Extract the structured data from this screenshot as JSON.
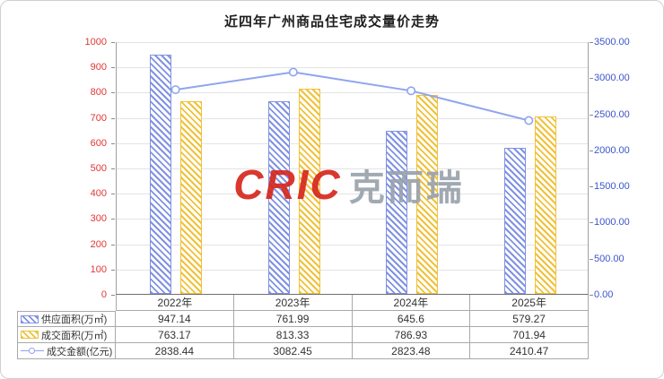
{
  "title": "近四年广州商品住宅成交量价走势",
  "watermark": {
    "brand": "CRIC",
    "brand_cn": "克而瑞",
    "brand_color": "#d6281e",
    "cn_color": "#9aa2ac"
  },
  "chart_data": {
    "type": "bar",
    "subtype": "grouped-bars-with-line",
    "title": "近四年广州商品住宅成交量价走势",
    "categories": [
      "2022年",
      "2023年",
      "2024年",
      "2025年"
    ],
    "series": [
      {
        "name": "供应面积(万㎡)",
        "kind": "bar",
        "axis": "left",
        "values": [
          947.14,
          761.99,
          645.6,
          579.27
        ],
        "display": [
          "947.14",
          "761.99",
          "645.6",
          "579.27"
        ],
        "color": "#8092e2",
        "fill_pattern": "diagonal-hatch"
      },
      {
        "name": "成交面积(万㎡)",
        "kind": "bar",
        "axis": "left",
        "values": [
          763.17,
          813.33,
          786.93,
          701.94
        ],
        "display": [
          "763.17",
          "813.33",
          "786.93",
          "701.94"
        ],
        "color": "#f0c138",
        "fill_pattern": "diagonal-hatch"
      },
      {
        "name": "成交金额(亿元)",
        "kind": "line",
        "axis": "right",
        "values": [
          2838.44,
          3082.45,
          2823.48,
          2410.47
        ],
        "display": [
          "2838.44",
          "3082.45",
          "2823.48",
          "2410.47"
        ],
        "color": "#8fa5ee",
        "marker": "circle-open"
      }
    ],
    "left_axis": {
      "min": 0,
      "max": 1000,
      "step": 100,
      "labels": [
        "0",
        "100",
        "200",
        "300",
        "400",
        "500",
        "600",
        "700",
        "800",
        "900",
        "1000"
      ],
      "label_color": "#e03636"
    },
    "right_axis": {
      "min": 0,
      "max": 3500,
      "step": 500,
      "labels": [
        "0.00",
        "500.00",
        "1000.00",
        "1500.00",
        "2000.00",
        "2500.00",
        "3000.00",
        "3500.00"
      ],
      "label_color": "#3c55cc"
    },
    "grid": true,
    "legend_position": "table-left"
  }
}
